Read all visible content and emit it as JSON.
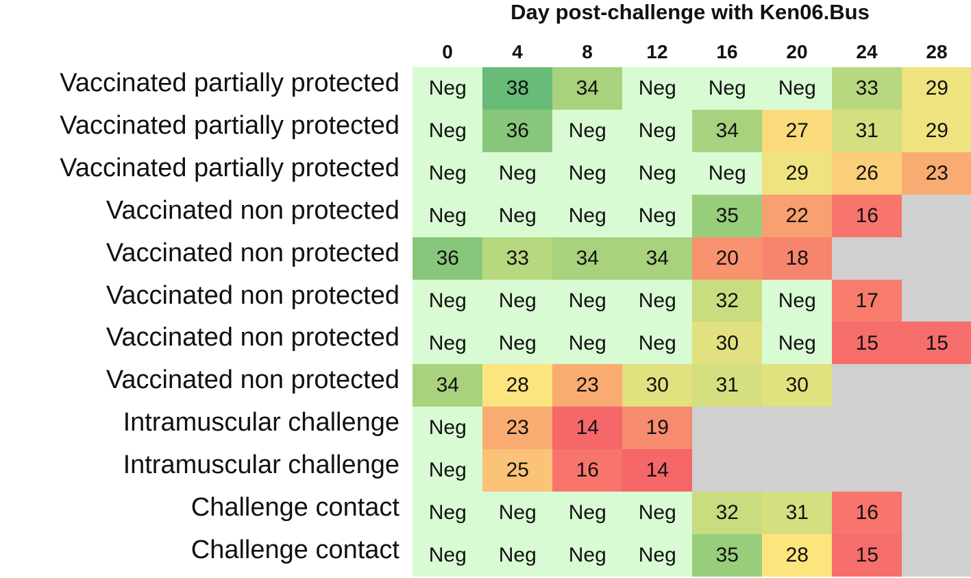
{
  "chart_data": {
    "type": "heatmap",
    "title": "Day post-challenge with Ken06.Bus",
    "xlabel": "",
    "ylabel": "",
    "columns": [
      "0",
      "4",
      "8",
      "12",
      "16",
      "20",
      "24",
      "28"
    ],
    "rows": [
      {
        "label": "Vaccinated partially protected",
        "values": [
          "Neg",
          "38",
          "34",
          "Neg",
          "Neg",
          "Neg",
          "33",
          "29"
        ]
      },
      {
        "label": "Vaccinated partially protected",
        "values": [
          "Neg",
          "36",
          "Neg",
          "Neg",
          "34",
          "27",
          "31",
          "29"
        ]
      },
      {
        "label": "Vaccinated partially protected",
        "values": [
          "Neg",
          "Neg",
          "Neg",
          "Neg",
          "Neg",
          "29",
          "26",
          "23"
        ]
      },
      {
        "label": "Vaccinated non protected",
        "values": [
          "Neg",
          "Neg",
          "Neg",
          "Neg",
          "35",
          "22",
          "16",
          null
        ]
      },
      {
        "label": "Vaccinated non protected",
        "values": [
          "36",
          "33",
          "34",
          "34",
          "20",
          "18",
          null,
          null
        ]
      },
      {
        "label": "Vaccinated non protected",
        "values": [
          "Neg",
          "Neg",
          "Neg",
          "Neg",
          "32",
          "Neg",
          "17",
          null
        ]
      },
      {
        "label": "Vaccinated non protected",
        "values": [
          "Neg",
          "Neg",
          "Neg",
          "Neg",
          "30",
          "Neg",
          "15",
          "15"
        ]
      },
      {
        "label": "Vaccinated non protected",
        "values": [
          "34",
          "28",
          "23",
          "30",
          "31",
          "30",
          null,
          null
        ]
      },
      {
        "label": "Intramuscular challenge",
        "values": [
          "Neg",
          "23",
          "14",
          "19",
          null,
          null,
          null,
          null
        ]
      },
      {
        "label": "Intramuscular challenge",
        "values": [
          "Neg",
          "25",
          "16",
          "14",
          null,
          null,
          null,
          null
        ]
      },
      {
        "label": "Challenge contact",
        "values": [
          "Neg",
          "Neg",
          "Neg",
          "Neg",
          "32",
          "31",
          "16",
          null
        ]
      },
      {
        "label": "Challenge contact",
        "values": [
          "Neg",
          "Neg",
          "Neg",
          "Neg",
          "35",
          "28",
          "15",
          null
        ]
      }
    ],
    "colors": {
      "neg": "#d9fbd3",
      "missing": "#d0d0d0",
      "scale": [
        {
          "value": 14,
          "color": "#f6676a"
        },
        {
          "value": 22,
          "color": "#f8a070"
        },
        {
          "value": 28,
          "color": "#fce57e"
        },
        {
          "value": 32,
          "color": "#c8dd80"
        },
        {
          "value": 38,
          "color": "#68bc78"
        }
      ]
    }
  }
}
